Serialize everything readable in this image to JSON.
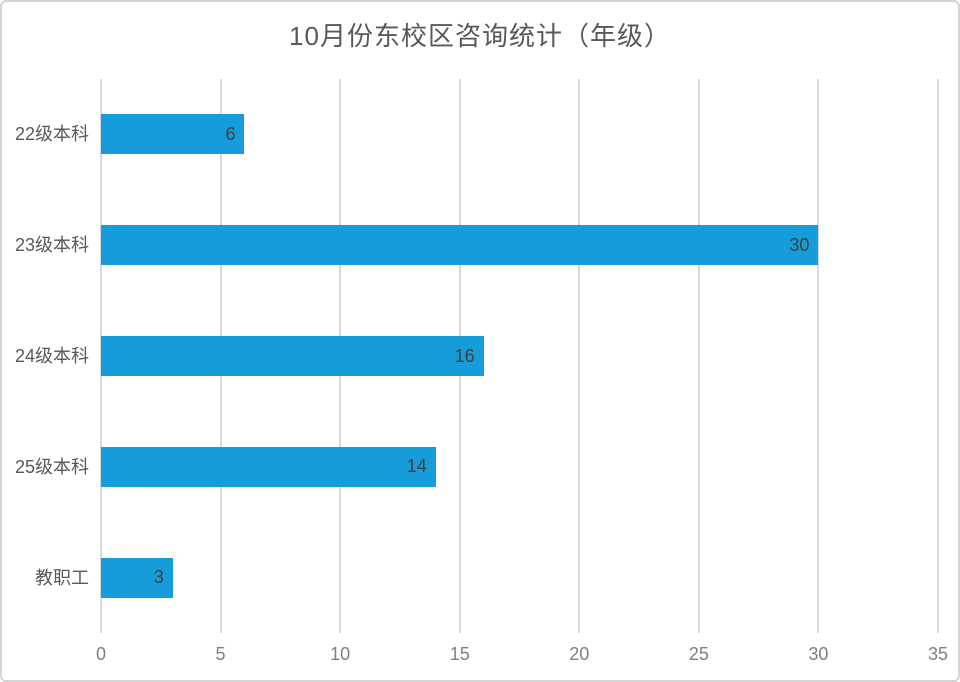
{
  "chart_data": {
    "type": "bar",
    "orientation": "horizontal",
    "title": "10月份东校区咨询统计（年级）",
    "categories": [
      "22级本科",
      "23级本科",
      "24级本科",
      "25级本科",
      "教职工"
    ],
    "values": [
      6,
      30,
      16,
      14,
      3
    ],
    "xlim": [
      0,
      35
    ],
    "x_ticks": [
      0,
      5,
      10,
      15,
      20,
      25,
      30,
      35
    ],
    "grid": "vertical-gridlines-on",
    "legend": "none",
    "value_labels": "inside-end",
    "colors": {
      "bar": "#169cd8",
      "value_label": "#404040",
      "category_label": "#595959",
      "tick_label": "#7f7f7f",
      "title": "#595959",
      "gridline": "#d9d9d9",
      "frame_border": "#d5d5d5",
      "background": "#ffffff"
    }
  }
}
